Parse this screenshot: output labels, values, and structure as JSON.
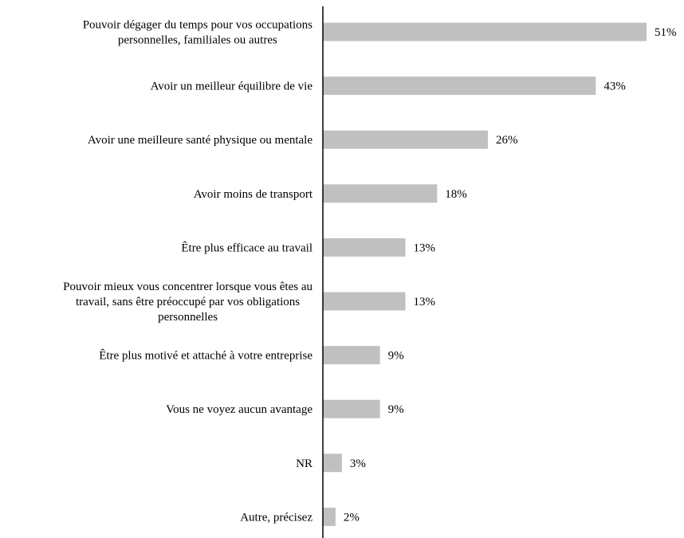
{
  "chart_data": {
    "type": "bar",
    "orientation": "horizontal",
    "categories": [
      [
        "Pouvoir dégager du temps pour vos occupations",
        "personnelles, familiales ou autres"
      ],
      [
        "Avoir un meilleur équilibre de vie"
      ],
      [
        "Avoir une meilleure santé physique ou mentale"
      ],
      [
        "Avoir moins de transport"
      ],
      [
        "Être plus efficace au travail"
      ],
      [
        "Pouvoir mieux vous concentrer lorsque vous êtes au",
        "travail, sans être préoccupé par vos obligations",
        "personnelles"
      ],
      [
        "Être plus motivé et attaché à votre entreprise"
      ],
      [
        "Vous ne voyez aucun avantage"
      ],
      [
        "NR"
      ],
      [
        "Autre, précisez"
      ]
    ],
    "values": [
      51,
      43,
      26,
      18,
      13,
      13,
      9,
      9,
      3,
      2
    ],
    "value_labels": [
      "51%",
      "43%",
      "26%",
      "18%",
      "13%",
      "13%",
      "9%",
      "9%",
      "3%",
      "2%"
    ],
    "title": "",
    "xlabel": "",
    "ylabel": "",
    "xlim": [
      0,
      51
    ],
    "grid": false,
    "legend": "none",
    "colors": {
      "bar": "#c0c0c0",
      "axis": "#000000",
      "text": "#000000"
    }
  }
}
